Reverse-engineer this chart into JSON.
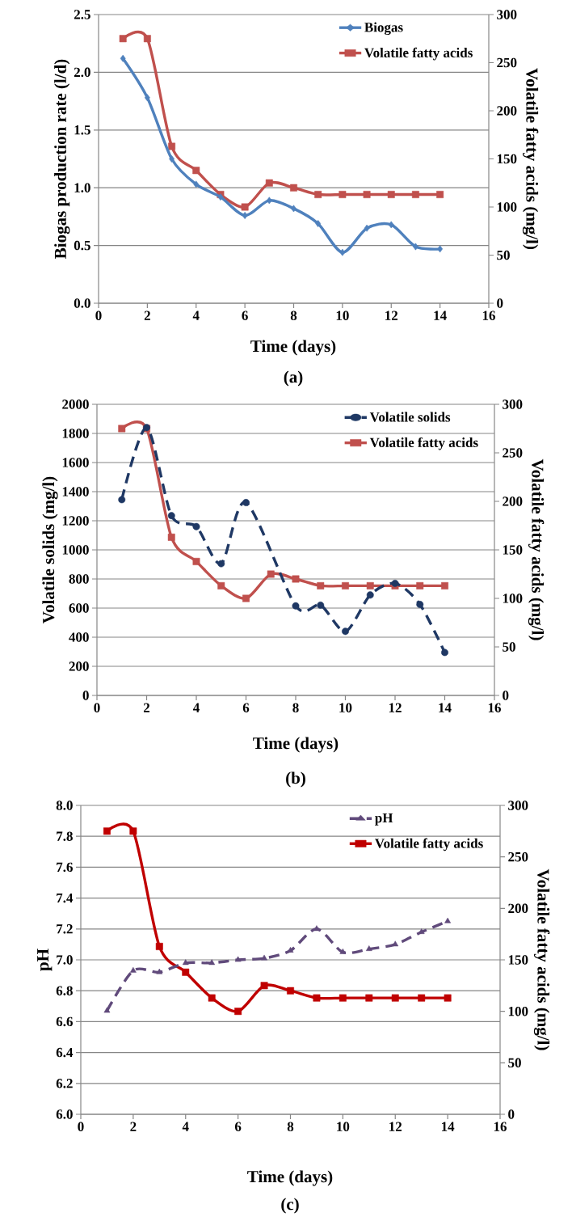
{
  "chart_data": [
    {
      "type": "line",
      "xlabel": "Time (days)",
      "ylabel": "Biogas production rate (l/d)",
      "y2label": "Volatile fatty acids (mg/l)",
      "annotations": [
        "(a)"
      ],
      "x": [
        1,
        2,
        3,
        4,
        5,
        6,
        7,
        8,
        9,
        10,
        11,
        12,
        13,
        14
      ],
      "xlim": [
        0,
        16
      ],
      "xticks": [
        0,
        2,
        4,
        6,
        8,
        10,
        12,
        14,
        16
      ],
      "ylim": [
        0,
        2.5
      ],
      "yticks": [
        {
          "value": 0,
          "label": "0.0"
        },
        0.5,
        {
          "value": 1,
          "label": "1.0"
        },
        1.5,
        {
          "value": 2,
          "label": "2.0"
        },
        2.5
      ],
      "y2lim": [
        0,
        300
      ],
      "y2ticks": [
        0,
        50,
        100,
        150,
        200,
        250,
        300
      ],
      "grid": "y",
      "legend": "top right",
      "series": [
        {
          "name": "Biogas",
          "color": "#4f81bd",
          "marker": "diamond",
          "line_style": "solid",
          "values": [
            2.12,
            1.78,
            1.25,
            1.03,
            0.92,
            0.76,
            0.89,
            0.82,
            0.69,
            0.44,
            0.65,
            0.68,
            0.49,
            0.47
          ]
        },
        {
          "name": "Volatile fatty acids",
          "color": "#c0504d",
          "marker": "square",
          "line_style": "solid",
          "axis": "y2",
          "values": [
            275,
            275,
            163,
            138,
            113,
            100,
            125,
            120,
            113,
            113,
            113,
            113,
            113,
            113
          ]
        }
      ]
    },
    {
      "type": "line",
      "xlabel": "Time (days)",
      "ylabel": "Volatile solids (mg/l)",
      "y2label": "Volatile fatty acids (mg/l)",
      "annotations": [
        "(b)"
      ],
      "x": [
        1,
        2,
        3,
        4,
        5,
        6,
        7,
        8,
        9,
        10,
        11,
        12,
        13,
        14
      ],
      "xlim": [
        0,
        16
      ],
      "xticks": [
        0,
        2,
        4,
        6,
        8,
        10,
        12,
        14,
        16
      ],
      "ylim": [
        0,
        2000
      ],
      "yticks": [
        0,
        200,
        400,
        600,
        800,
        1000,
        1200,
        1400,
        1600,
        1800,
        2000
      ],
      "y2lim": [
        0,
        300
      ],
      "y2ticks": [
        0,
        50,
        100,
        150,
        200,
        250,
        300
      ],
      "grid": "y",
      "legend": "top right",
      "series": [
        {
          "name": "Volatile solids",
          "color": "#1f3864",
          "marker": "circle",
          "line_style": "dashed",
          "values": [
            1345,
            1840,
            1235,
            1160,
            905,
            1325,
            null,
            615,
            620,
            440,
            690,
            770,
            625,
            295
          ]
        },
        {
          "name": "Volatile fatty acids",
          "color": "#c0504d",
          "marker": "square",
          "line_style": "solid",
          "axis": "y2",
          "values": [
            275,
            275,
            163,
            138,
            113,
            100,
            125,
            120,
            113,
            113,
            113,
            113,
            113,
            113
          ]
        }
      ]
    },
    {
      "type": "line",
      "xlabel": "Time (days)",
      "ylabel": "pH",
      "y2label": "Volatile fatty acids (mg/l)",
      "annotations": [
        "(c)"
      ],
      "x": [
        1,
        2,
        3,
        4,
        5,
        6,
        7,
        8,
        9,
        10,
        11,
        12,
        13,
        14
      ],
      "xlim": [
        0,
        16
      ],
      "xticks": [
        0,
        2,
        4,
        6,
        8,
        10,
        12,
        14,
        16
      ],
      "ylim": [
        6,
        8
      ],
      "yticks": [
        {
          "value": 6,
          "label": "6.0"
        },
        6.2,
        6.4,
        6.6,
        6.8,
        {
          "value": 7,
          "label": "7.0"
        },
        7.2,
        7.4,
        7.6,
        7.8,
        {
          "value": 8,
          "label": "8.0"
        }
      ],
      "y2lim": [
        0,
        300
      ],
      "y2ticks": [
        0,
        50,
        100,
        150,
        200,
        250,
        300
      ],
      "grid": "y",
      "legend": "top right",
      "series": [
        {
          "name": "pH",
          "color": "#604a7b",
          "marker": "triangle",
          "line_style": "dashed",
          "values": [
            6.67,
            6.93,
            6.92,
            6.98,
            6.98,
            7.0,
            7.01,
            7.06,
            7.2,
            7.05,
            7.07,
            7.1,
            7.18,
            7.25
          ]
        },
        {
          "name": "Volatile fatty acids",
          "color": "#c00000",
          "marker": "square",
          "line_style": "solid",
          "axis": "y2",
          "values": [
            275,
            275,
            163,
            138,
            113,
            100,
            125,
            120,
            113,
            113,
            113,
            113,
            113,
            113
          ]
        }
      ]
    }
  ]
}
